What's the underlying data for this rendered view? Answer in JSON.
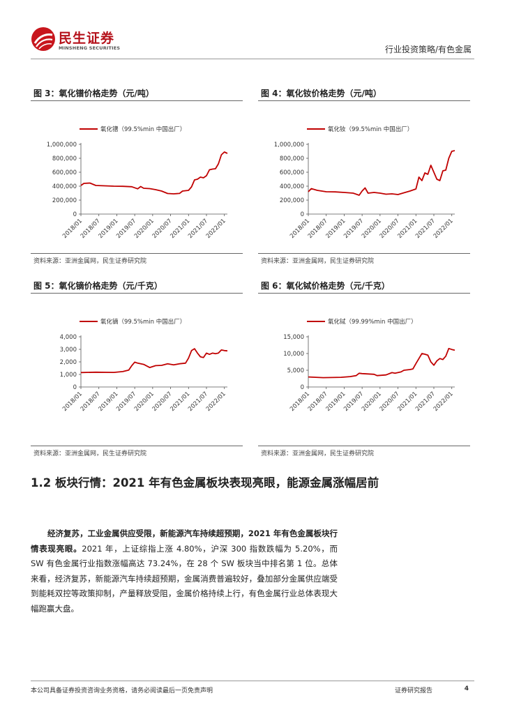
{
  "header": {
    "brand_cn": "民生证券",
    "brand_en": "MINSHENG SECURITIES",
    "section": "行业投资策略/有色金属"
  },
  "panels": [
    {
      "title": "图 3：氧化镨价格走势（元/吨）",
      "source": "资料来源：亚洲金属网，民生证券研究院"
    },
    {
      "title": "图 4：氧化钕价格走势（元/吨）",
      "source": "资料来源：亚洲金属网，民生证券研究院"
    },
    {
      "title": "图 5：氧化镝价格走势（元/千克）",
      "source": "资料来源：亚洲金属网，民生证券研究院"
    },
    {
      "title": "图 6：氧化铽价格走势（元/千克）",
      "source": "资料来源：亚洲金属网，民生证券研究院"
    }
  ],
  "chart_data": [
    {
      "type": "line",
      "series": [
        {
          "name": "氧化镨（99.5%min 中国出厂）",
          "color": "#c00000"
        }
      ],
      "x_ticks": [
        "2018/01",
        "2018/07",
        "2019/01",
        "2019/07",
        "2020/01",
        "2020/07",
        "2021/01",
        "2021/07",
        "2022/01"
      ],
      "y_ticks": [
        "0",
        "200,000",
        "400,000",
        "600,000",
        "800,000",
        "1,000,000"
      ],
      "ylim": [
        0,
        1000000
      ],
      "xlim": [
        "2018/01",
        "2022/02"
      ],
      "points": [
        [
          "2018/01",
          410000
        ],
        [
          "2018/02",
          440000
        ],
        [
          "2018/04",
          445000
        ],
        [
          "2018/06",
          410000
        ],
        [
          "2018/09",
          405000
        ],
        [
          "2018/12",
          400000
        ],
        [
          "2019/03",
          398000
        ],
        [
          "2019/06",
          392000
        ],
        [
          "2019/08",
          362000
        ],
        [
          "2019/09",
          395000
        ],
        [
          "2019/10",
          370000
        ],
        [
          "2019/12",
          365000
        ],
        [
          "2020/02",
          350000
        ],
        [
          "2020/04",
          330000
        ],
        [
          "2020/06",
          295000
        ],
        [
          "2020/08",
          290000
        ],
        [
          "2020/10",
          296000
        ],
        [
          "2020/11",
          330000
        ],
        [
          "2021/01",
          340000
        ],
        [
          "2021/02",
          390000
        ],
        [
          "2021/03",
          490000
        ],
        [
          "2021/04",
          500000
        ],
        [
          "2021/05",
          530000
        ],
        [
          "2021/06",
          520000
        ],
        [
          "2021/07",
          550000
        ],
        [
          "2021/08",
          635000
        ],
        [
          "2021/09",
          645000
        ],
        [
          "2021/10",
          650000
        ],
        [
          "2021/11",
          720000
        ],
        [
          "2021/12",
          850000
        ],
        [
          "2022/01",
          890000
        ],
        [
          "2022/02",
          870000
        ]
      ]
    },
    {
      "type": "line",
      "series": [
        {
          "name": "氧化钕（99.5%min 中国出厂）",
          "color": "#c00000"
        }
      ],
      "x_ticks": [
        "2018/01",
        "2018/07",
        "2019/01",
        "2019/07",
        "2020/01",
        "2020/07",
        "2021/01",
        "2021/07",
        "2022/01"
      ],
      "y_ticks": [
        "0",
        "200,000",
        "400,000",
        "600,000",
        "800,000",
        "1,000,000"
      ],
      "ylim": [
        0,
        1000000
      ],
      "xlim": [
        "2018/01",
        "2022/02"
      ],
      "points": [
        [
          "2018/01",
          320000
        ],
        [
          "2018/02",
          365000
        ],
        [
          "2018/04",
          340000
        ],
        [
          "2018/07",
          320000
        ],
        [
          "2018/10",
          318000
        ],
        [
          "2019/01",
          310000
        ],
        [
          "2019/04",
          300000
        ],
        [
          "2019/06",
          270000
        ],
        [
          "2019/07",
          330000
        ],
        [
          "2019/08",
          375000
        ],
        [
          "2019/09",
          300000
        ],
        [
          "2019/11",
          310000
        ],
        [
          "2020/01",
          300000
        ],
        [
          "2020/03",
          285000
        ],
        [
          "2020/05",
          290000
        ],
        [
          "2020/07",
          280000
        ],
        [
          "2020/09",
          305000
        ],
        [
          "2020/11",
          330000
        ],
        [
          "2021/01",
          360000
        ],
        [
          "2021/02",
          530000
        ],
        [
          "2021/03",
          480000
        ],
        [
          "2021/04",
          590000
        ],
        [
          "2021/05",
          570000
        ],
        [
          "2021/06",
          700000
        ],
        [
          "2021/07",
          600000
        ],
        [
          "2021/08",
          500000
        ],
        [
          "2021/09",
          480000
        ],
        [
          "2021/10",
          620000
        ],
        [
          "2021/11",
          630000
        ],
        [
          "2021/12",
          800000
        ],
        [
          "2022/01",
          900000
        ],
        [
          "2022/02",
          910000
        ]
      ]
    },
    {
      "type": "line",
      "series": [
        {
          "name": "氧化镝（99.5%min 中国出厂）",
          "color": "#c00000"
        }
      ],
      "x_ticks": [
        "2018/01",
        "2018/07",
        "2019/01",
        "2019/07",
        "2020/01",
        "2020/07",
        "2021/01",
        "2021/07",
        "2022/01"
      ],
      "y_ticks": [
        "0",
        "1,000",
        "2,000",
        "3,000",
        "4,000"
      ],
      "ylim": [
        0,
        4000
      ],
      "xlim": [
        "2018/01",
        "2022/02"
      ],
      "points": [
        [
          "2018/01",
          1150
        ],
        [
          "2018/06",
          1180
        ],
        [
          "2018/12",
          1160
        ],
        [
          "2019/03",
          1230
        ],
        [
          "2019/05",
          1350
        ],
        [
          "2019/06",
          1700
        ],
        [
          "2019/07",
          1980
        ],
        [
          "2019/08",
          1900
        ],
        [
          "2019/10",
          1800
        ],
        [
          "2019/12",
          1550
        ],
        [
          "2020/02",
          1700
        ],
        [
          "2020/04",
          1720
        ],
        [
          "2020/06",
          1850
        ],
        [
          "2020/08",
          1760
        ],
        [
          "2020/10",
          1850
        ],
        [
          "2020/12",
          1900
        ],
        [
          "2021/01",
          2300
        ],
        [
          "2021/02",
          2900
        ],
        [
          "2021/03",
          3050
        ],
        [
          "2021/04",
          2700
        ],
        [
          "2021/05",
          2400
        ],
        [
          "2021/06",
          2350
        ],
        [
          "2021/07",
          2700
        ],
        [
          "2021/08",
          2600
        ],
        [
          "2021/09",
          2700
        ],
        [
          "2021/10",
          2650
        ],
        [
          "2021/11",
          2700
        ],
        [
          "2021/12",
          2950
        ],
        [
          "2022/01",
          2900
        ],
        [
          "2022/02",
          2880
        ]
      ]
    },
    {
      "type": "line",
      "series": [
        {
          "name": "氧化铽（99.99%min 中国出厂）",
          "color": "#c00000"
        }
      ],
      "x_ticks": [
        "2018/01",
        "2018/07",
        "2019/01",
        "2019/07",
        "2020/01",
        "2020/07",
        "2021/01",
        "2021/07",
        "2022/01"
      ],
      "y_ticks": [
        "0",
        "5,000",
        "10,000",
        "15,000"
      ],
      "ylim": [
        0,
        15000
      ],
      "xlim": [
        "2018/01",
        "2022/02"
      ],
      "points": [
        [
          "2018/01",
          3000
        ],
        [
          "2018/06",
          2800
        ],
        [
          "2018/12",
          2900
        ],
        [
          "2019/03",
          3100
        ],
        [
          "2019/05",
          3400
        ],
        [
          "2019/06",
          4100
        ],
        [
          "2019/07",
          4000
        ],
        [
          "2019/09",
          3900
        ],
        [
          "2019/11",
          3800
        ],
        [
          "2019/12",
          3400
        ],
        [
          "2020/03",
          3600
        ],
        [
          "2020/05",
          4300
        ],
        [
          "2020/06",
          4100
        ],
        [
          "2020/08",
          4500
        ],
        [
          "2020/09",
          5000
        ],
        [
          "2020/11",
          5200
        ],
        [
          "2020/12",
          5400
        ],
        [
          "2021/01",
          7000
        ],
        [
          "2021/02",
          8500
        ],
        [
          "2021/03",
          10000
        ],
        [
          "2021/04",
          9800
        ],
        [
          "2021/05",
          9500
        ],
        [
          "2021/06",
          7500
        ],
        [
          "2021/07",
          6500
        ],
        [
          "2021/08",
          7800
        ],
        [
          "2021/09",
          8500
        ],
        [
          "2021/10",
          8200
        ],
        [
          "2021/11",
          9200
        ],
        [
          "2021/12",
          11500
        ],
        [
          "2022/01",
          11200
        ],
        [
          "2022/02",
          11000
        ]
      ]
    }
  ],
  "section": {
    "heading": "1.2 板块行情：2021 年有色金属板块表现亮眼，能源金属涨幅居前",
    "lead": "经济复苏，工业金属供应受限，新能源汽车持续超预期，2021 年有色金属板块行情表现亮眼。",
    "body": "2021 年，上证综指上涨 4.80%，沪深 300 指数跌幅为 5.20%，而 SW 有色金属行业指数涨幅高达 73.24%，在 28 个 SW 板块当中排名第 1 位。总体来看，经济复苏，新能源汽车持续超预期，金属消费普遍较好，叠加部分金属供应端受到能耗双控等政策抑制，产量释放受阻，金属价格持续上行，有色金属行业总体表现大幅跑赢大盘。"
  },
  "footer": {
    "disclaimer": "本公司具备证券投资咨询业务资格，请务必阅读最后一页免责声明",
    "doc_type": "证券研究报告",
    "page": "4"
  }
}
